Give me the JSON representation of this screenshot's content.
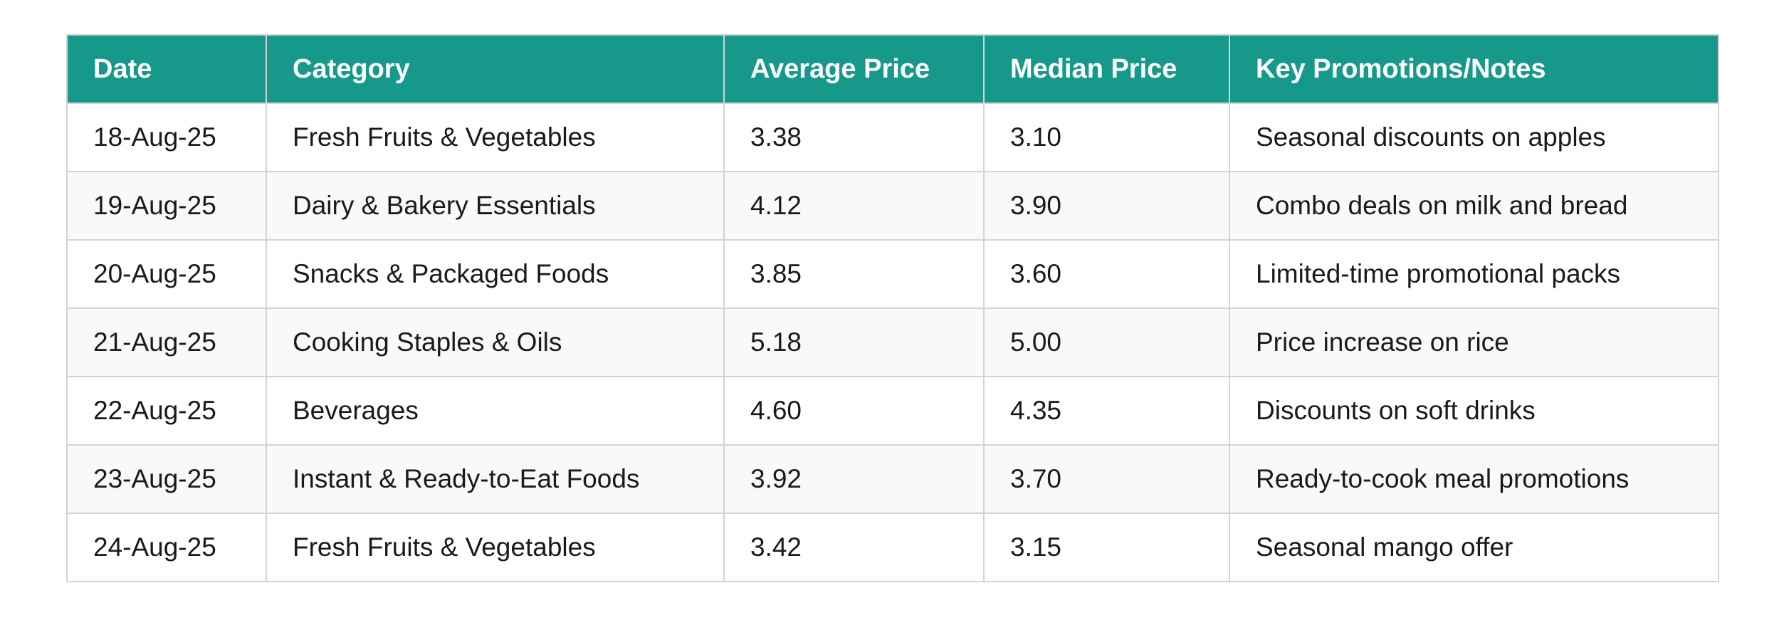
{
  "table": {
    "headers": [
      "Date",
      "Category",
      "Average Price",
      "Median Price",
      "Key Promotions/Notes"
    ],
    "rows": [
      [
        "18-Aug-25",
        "Fresh Fruits & Vegetables",
        "3.38",
        "3.10",
        "Seasonal discounts on apples"
      ],
      [
        "19-Aug-25",
        "Dairy & Bakery Essentials",
        "4.12",
        "3.90",
        "Combo deals on milk and bread"
      ],
      [
        "20-Aug-25",
        "Snacks & Packaged Foods",
        "3.85",
        "3.60",
        "Limited-time promotional packs"
      ],
      [
        "21-Aug-25",
        "Cooking Staples & Oils",
        "5.18",
        "5.00",
        "Price increase on rice"
      ],
      [
        "22-Aug-25",
        "Beverages",
        "4.60",
        "4.35",
        "Discounts on soft drinks"
      ],
      [
        "23-Aug-25",
        "Instant & Ready-to-Eat Foods",
        "3.92",
        "3.70",
        "Ready-to-cook meal promotions"
      ],
      [
        "24-Aug-25",
        "Fresh Fruits & Vegetables",
        "3.42",
        "3.15",
        "Seasonal mango offer"
      ]
    ]
  },
  "colors": {
    "header_bg": "#16998a",
    "header_text": "#ffffff",
    "border": "#d3d3d3",
    "stripe": "#f9f9f9"
  }
}
